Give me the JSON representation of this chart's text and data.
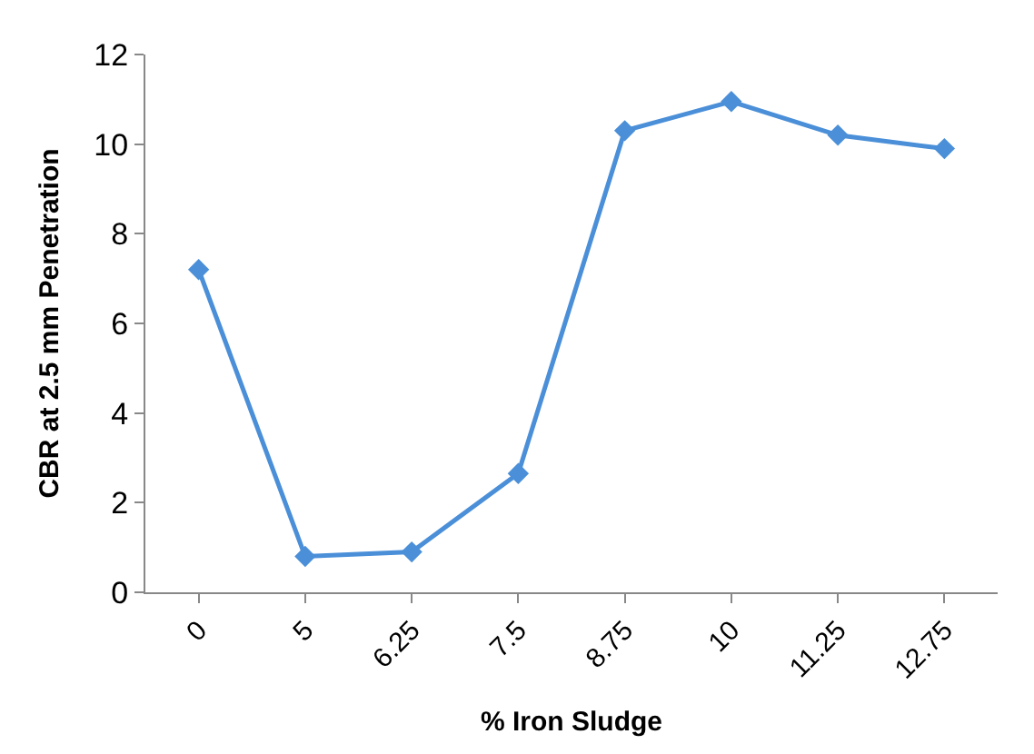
{
  "chart_data": {
    "type": "line",
    "xlabel": "% Iron Sludge",
    "ylabel": "CBR at 2.5 mm Penetration",
    "categories": [
      "0",
      "5",
      "6.25",
      "7.5",
      "8.75",
      "10",
      "11.25",
      "12.75"
    ],
    "series": [
      {
        "color": "#4a8fd8",
        "values": [
          7.2,
          0.8,
          0.9,
          2.65,
          10.3,
          10.95,
          10.2,
          9.9
        ]
      }
    ],
    "ylim": [
      0,
      12
    ],
    "yticks": [
      0,
      2,
      4,
      6,
      8,
      10,
      12
    ],
    "marker": "diamond",
    "line_style": "solid",
    "legend": false
  }
}
